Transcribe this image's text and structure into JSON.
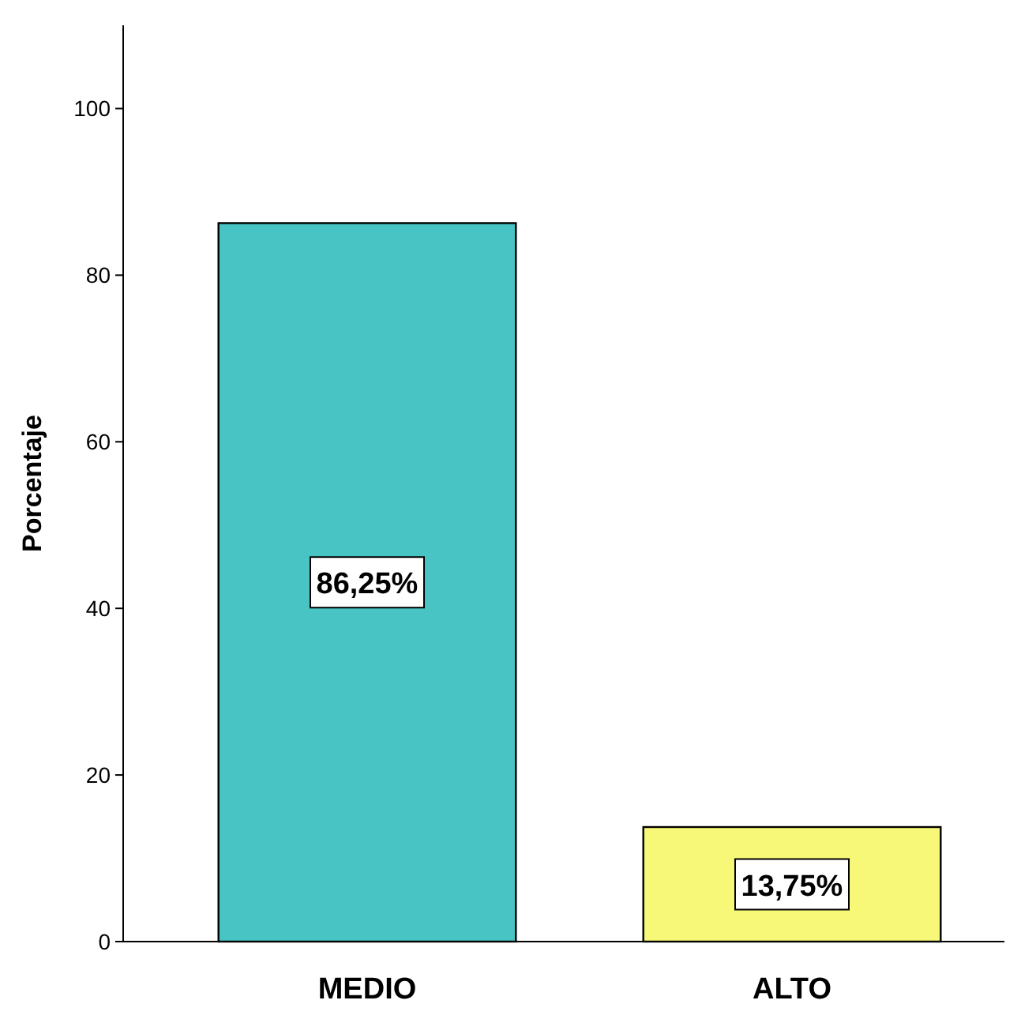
{
  "chart_data": {
    "type": "bar",
    "ylabel": "Porcentaje",
    "categories": [
      "MEDIO",
      "ALTO"
    ],
    "values": [
      86.25,
      13.75
    ],
    "value_labels": [
      "86,25%",
      "13,75%"
    ],
    "colors": [
      "#48c4c4",
      "#f8f878"
    ],
    "ylim": [
      0,
      110
    ],
    "yticks": [
      0,
      20,
      40,
      60,
      80,
      100
    ],
    "grid": false
  }
}
